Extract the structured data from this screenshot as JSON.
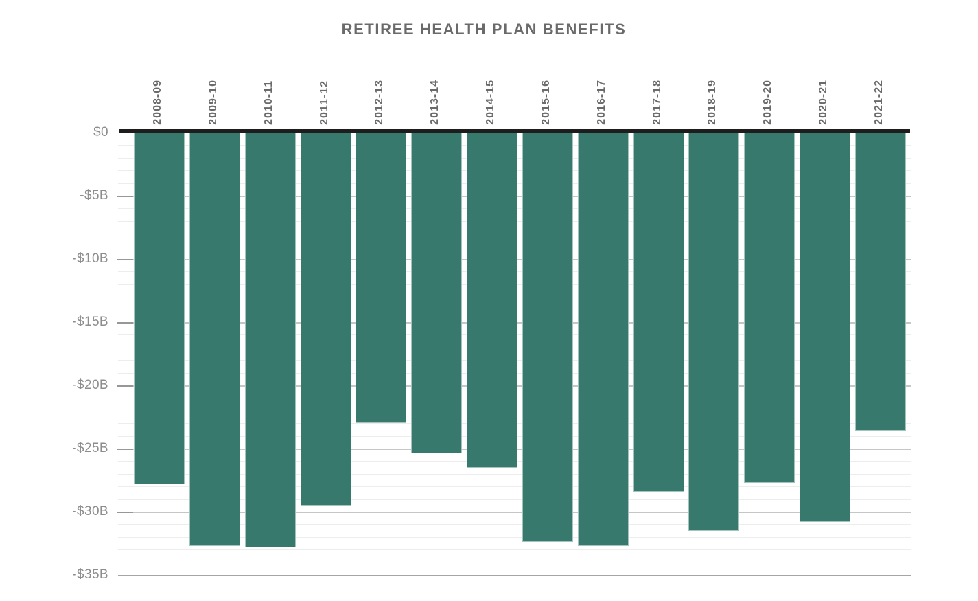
{
  "chart_data": {
    "type": "bar",
    "title": "RETIREE HEALTH PLAN BENEFITS",
    "categories": [
      "2008-09",
      "2009-10",
      "2010-11",
      "2011-12",
      "2012-13",
      "2013-14",
      "2014-15",
      "2015-16",
      "2016-17",
      "2017-18",
      "2018-19",
      "2019-20",
      "2020-21",
      "2021-22"
    ],
    "values": [
      -27.8,
      -32.7,
      -32.8,
      -29.5,
      -23.0,
      -25.4,
      -26.5,
      -32.4,
      -32.7,
      -28.4,
      -31.5,
      -27.7,
      -30.8,
      -23.6
    ],
    "value_unit": "billions of dollars",
    "xlabel": "",
    "ylabel": "",
    "ylim": [
      -35,
      0
    ],
    "y_major_step": 5,
    "y_minor_step": 1,
    "y_tick_labels": [
      "$0",
      "-$5B",
      "-$10B",
      "-$15B",
      "-$20B",
      "-$25B",
      "-$30B",
      "-$35B"
    ],
    "x_tick_rotation": -90,
    "grid": "horizontal, minor every 1B, major every 5B",
    "legend_position": "none"
  },
  "colors": {
    "bar": "#377a6d",
    "zero_axis": "#1d1d1d",
    "title_text": "#6a6a6a",
    "x_label_text": "#6a6a6a",
    "y_label_text": "#8d8d8d",
    "minor_gridline": "#ededed",
    "major_gridline": "#c6c6c6",
    "background": "#ffffff"
  }
}
